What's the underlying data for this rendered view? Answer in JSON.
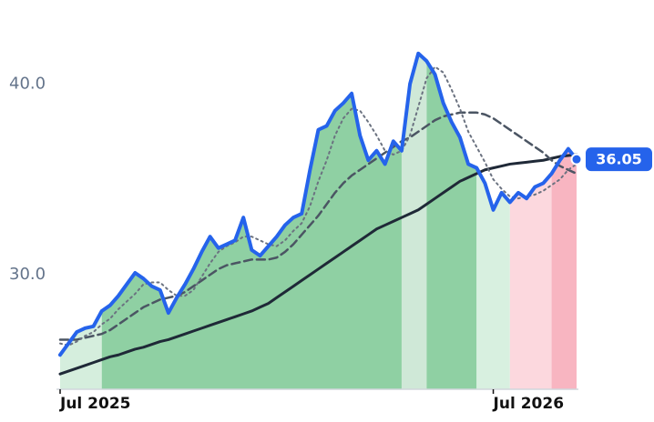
{
  "chart_data": {
    "type": "line",
    "categories": [
      "Jul 2025",
      null,
      null,
      null,
      null,
      null,
      null,
      null,
      null,
      null,
      null,
      null,
      null,
      null,
      null,
      null,
      null,
      null,
      null,
      null,
      null,
      null,
      null,
      null,
      null,
      null,
      null,
      null,
      null,
      null,
      null,
      null,
      null,
      null,
      null,
      null,
      null,
      null,
      null,
      null,
      null,
      null,
      null,
      null,
      null,
      null,
      null,
      null,
      null,
      null,
      null,
      null,
      "Jul 2026",
      null,
      null,
      null,
      null,
      null,
      null,
      null,
      null,
      null,
      null
    ],
    "series": [
      {
        "color": "#2563eb",
        "style": "solid",
        "width": 4,
        "values": [
          25.8,
          26.4,
          27.0,
          27.2,
          27.3,
          28.1,
          28.4,
          28.9,
          29.5,
          30.1,
          29.8,
          29.4,
          29.2,
          28.0,
          28.8,
          29.5,
          30.3,
          31.2,
          32.0,
          31.4,
          31.6,
          31.8,
          33.0,
          31.3,
          31.0,
          31.5,
          32.0,
          32.6,
          33.0,
          33.2,
          35.5,
          37.6,
          37.8,
          38.6,
          39.0,
          39.5,
          37.3,
          36.0,
          36.5,
          35.8,
          37.0,
          36.5,
          40.0,
          41.6,
          41.2,
          40.5,
          39.0,
          38.0,
          37.2,
          35.8,
          35.6,
          34.8,
          33.4,
          34.3,
          33.8,
          34.3,
          34.0,
          34.6,
          34.8,
          35.3,
          36.0,
          36.6,
          36.05
        ]
      },
      {
        "color": "#6b7280",
        "style": "dotted",
        "width": 2,
        "values": [
          26.4,
          26.3,
          26.5,
          26.8,
          27.0,
          27.4,
          27.7,
          28.2,
          28.6,
          29.0,
          29.5,
          29.6,
          29.6,
          29.2,
          28.9,
          28.9,
          29.2,
          29.9,
          30.6,
          31.2,
          31.5,
          31.7,
          32.0,
          32.0,
          31.8,
          31.6,
          31.5,
          31.8,
          32.3,
          32.7,
          33.6,
          34.9,
          36.0,
          37.3,
          38.2,
          38.7,
          38.6,
          38.0,
          37.3,
          36.5,
          36.3,
          36.5,
          37.3,
          38.8,
          40.3,
          40.9,
          40.6,
          39.7,
          38.7,
          37.5,
          36.7,
          35.9,
          35.0,
          34.5,
          34.1,
          34.0,
          34.1,
          34.2,
          34.4,
          34.7,
          35.0,
          35.5,
          35.8
        ]
      },
      {
        "color": "#4b5563",
        "style": "dashed",
        "width": 2.5,
        "values": [
          26.6,
          26.6,
          26.6,
          26.7,
          26.8,
          26.9,
          27.1,
          27.4,
          27.7,
          28.0,
          28.3,
          28.5,
          28.7,
          28.8,
          28.9,
          29.1,
          29.4,
          29.7,
          30.0,
          30.3,
          30.5,
          30.6,
          30.7,
          30.8,
          30.8,
          30.8,
          30.9,
          31.2,
          31.6,
          32.1,
          32.6,
          33.1,
          33.7,
          34.3,
          34.8,
          35.2,
          35.5,
          35.8,
          36.1,
          36.4,
          36.7,
          37.0,
          37.2,
          37.5,
          37.8,
          38.1,
          38.3,
          38.4,
          38.5,
          38.5,
          38.5,
          38.4,
          38.2,
          37.9,
          37.6,
          37.3,
          37.0,
          36.7,
          36.4,
          36.0,
          35.7,
          35.5,
          35.3
        ]
      },
      {
        "color": "#1f2937",
        "style": "solid",
        "width": 3,
        "values": [
          24.8,
          24.95,
          25.1,
          25.25,
          25.4,
          25.55,
          25.7,
          25.8,
          25.95,
          26.1,
          26.2,
          26.35,
          26.5,
          26.6,
          26.75,
          26.9,
          27.05,
          27.2,
          27.35,
          27.5,
          27.65,
          27.8,
          27.95,
          28.1,
          28.3,
          28.5,
          28.8,
          29.1,
          29.4,
          29.7,
          30.0,
          30.3,
          30.6,
          30.9,
          31.2,
          31.5,
          31.8,
          32.1,
          32.4,
          32.6,
          32.8,
          33.0,
          33.2,
          33.4,
          33.7,
          34.0,
          34.3,
          34.6,
          34.9,
          35.1,
          35.3,
          35.5,
          35.6,
          35.7,
          35.8,
          35.85,
          35.9,
          35.95,
          36.0,
          36.1,
          36.2,
          36.25,
          36.3
        ]
      }
    ],
    "regions": [
      {
        "from": 0,
        "to": 5,
        "color": "#d5eedd"
      },
      {
        "from": 5,
        "to": 41,
        "color": "#8fd0a3"
      },
      {
        "from": 41,
        "to": 44,
        "color": "#cfe8d7"
      },
      {
        "from": 44,
        "to": 50,
        "color": "#8fd0a3"
      },
      {
        "from": 50,
        "to": 54,
        "color": "#d8f0e0"
      },
      {
        "from": 54,
        "to": 59,
        "color": "#fcd8de"
      },
      {
        "from": 59,
        "to": 62,
        "color": "#f8b5c1"
      }
    ],
    "ylim": [
      24,
      44.4
    ],
    "yticks": [
      {
        "value": 30,
        "label": "30.0"
      },
      {
        "value": 40,
        "label": "40.0"
      }
    ],
    "last_label_color": "#2563eb"
  }
}
